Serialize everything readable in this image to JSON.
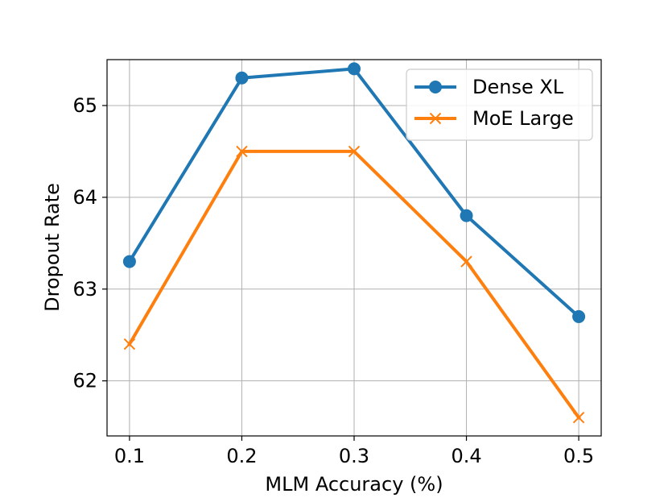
{
  "chart_data": {
    "type": "line",
    "title": "",
    "xlabel": "MLM Accuracy (%)",
    "ylabel": "Dropout Rate",
    "x": [
      0.1,
      0.2,
      0.3,
      0.4,
      0.5
    ],
    "x_tick_labels": [
      "0.1",
      "0.2",
      "0.3",
      "0.4",
      "0.5"
    ],
    "y_ticks": [
      62,
      63,
      64,
      65
    ],
    "y_tick_labels": [
      "62",
      "63",
      "64",
      "65"
    ],
    "xlim": [
      0.08,
      0.52
    ],
    "ylim": [
      61.4,
      65.5
    ],
    "grid": true,
    "legend_position": "top-right",
    "series": [
      {
        "name": "Dense XL",
        "color": "#1f77b4",
        "marker": "circle",
        "values": [
          63.3,
          65.3,
          65.4,
          63.8,
          62.7
        ]
      },
      {
        "name": "MoE Large",
        "color": "#ff7f0e",
        "marker": "x",
        "values": [
          62.4,
          64.5,
          64.5,
          63.3,
          61.6
        ]
      }
    ]
  }
}
